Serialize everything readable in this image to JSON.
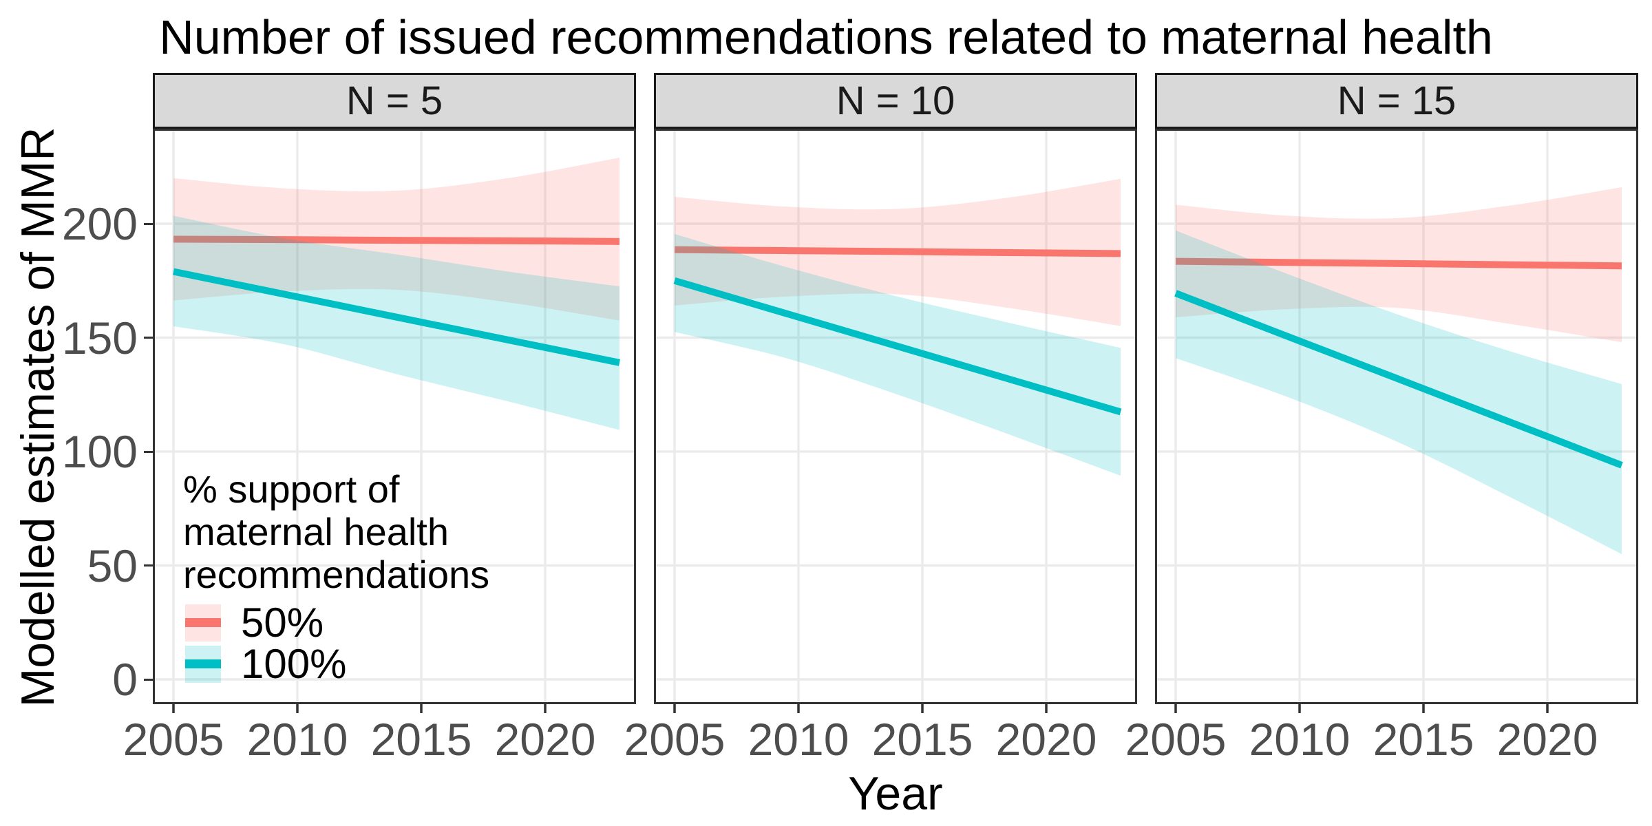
{
  "title": "Number of issued recommendations related to maternal health",
  "axes": {
    "x_title": "Year",
    "y_title": "Modelled estimates of MMR",
    "x_ticks": [
      2005,
      2010,
      2015,
      2020
    ],
    "y_ticks": [
      0,
      50,
      100,
      150,
      200
    ],
    "x_domain": [
      2005,
      2023
    ],
    "y_domain": [
      -11,
      242
    ],
    "grid": "major-only"
  },
  "legend": {
    "title_lines": [
      "% support of",
      "maternal health",
      "recommendations"
    ],
    "entries": [
      {
        "label": "50%",
        "color": "#F8766D"
      },
      {
        "label": "100%",
        "color": "#00BFC4"
      }
    ],
    "position": "inside-first-panel-bottom-left"
  },
  "colors": {
    "line_50": "#F8766D",
    "line_100": "#00BFC4",
    "ribbon_alpha": 0.2,
    "grid": "#EBEBEB",
    "panel_border": "#333333",
    "strip_fill": "#D9D9D9",
    "strip_border": "#1A1A1A",
    "tick_text": "#4D4D4D",
    "tick_mark": "#333333",
    "background": "#FFFFFF"
  },
  "chart_data": [
    {
      "type": "line",
      "facet": "N = 5",
      "x": [
        2005,
        2009.5,
        2014,
        2018.5,
        2023
      ],
      "series": [
        {
          "name": "50%",
          "values": [
            193.2,
            193.0,
            192.7,
            192.5,
            192.2
          ],
          "ci_upper": [
            220.0,
            215.5,
            214.5,
            220.0,
            229.0
          ],
          "ci_lower": [
            166.3,
            170.3,
            171.0,
            165.5,
            157.5
          ]
        },
        {
          "name": "100%",
          "values": [
            179.0,
            169.0,
            159.0,
            149.0,
            139.0
          ],
          "ci_upper": [
            203.5,
            193.5,
            186.5,
            179.0,
            172.5
          ],
          "ci_lower": [
            155.0,
            147.0,
            134.0,
            122.0,
            109.5
          ]
        }
      ]
    },
    {
      "type": "line",
      "facet": "N = 10",
      "x": [
        2005,
        2009.5,
        2014,
        2018.5,
        2023
      ],
      "series": [
        {
          "name": "50%",
          "values": [
            188.6,
            188.2,
            187.8,
            187.3,
            186.9
          ],
          "ci_upper": [
            211.8,
            207.5,
            206.5,
            211.5,
            219.7
          ],
          "ci_lower": [
            164.1,
            168.0,
            169.0,
            163.0,
            155.1
          ]
        },
        {
          "name": "100%",
          "values": [
            175.0,
            160.6,
            146.2,
            131.8,
            117.4
          ],
          "ci_upper": [
            195.5,
            181.0,
            168.0,
            156.5,
            145.5
          ],
          "ci_lower": [
            152.5,
            141.0,
            125.0,
            107.5,
            89.4
          ]
        }
      ]
    },
    {
      "type": "line",
      "facet": "N = 15",
      "x": [
        2005,
        2009.5,
        2014,
        2018.5,
        2023
      ],
      "series": [
        {
          "name": "50%",
          "values": [
            183.5,
            183.0,
            182.5,
            182.0,
            181.5
          ],
          "ci_upper": [
            208.3,
            203.5,
            202.5,
            208.0,
            216.0
          ],
          "ci_lower": [
            158.9,
            162.5,
            163.0,
            156.0,
            148.0
          ]
        },
        {
          "name": "100%",
          "values": [
            169.5,
            150.6,
            131.8,
            112.9,
            94.0
          ],
          "ci_upper": [
            197.0,
            178.0,
            160.0,
            144.0,
            129.6
          ],
          "ci_lower": [
            141.0,
            124.0,
            104.0,
            80.0,
            55.0
          ]
        }
      ]
    }
  ]
}
